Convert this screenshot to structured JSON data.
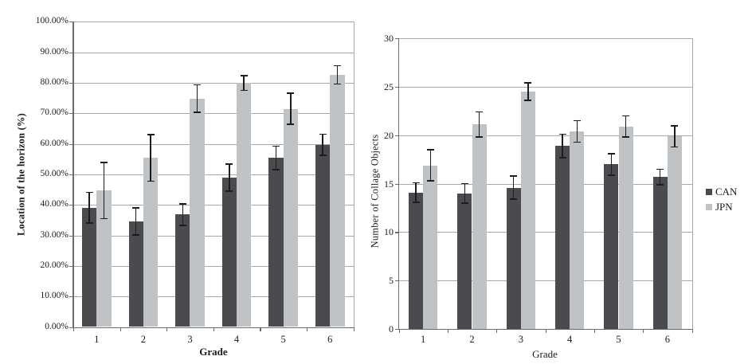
{
  "chart_data": [
    {
      "id": "horizon",
      "type": "bar",
      "title": "",
      "xlabel": "Grade",
      "ylabel": "Location of the horizon (%)",
      "categories": [
        "1",
        "2",
        "3",
        "4",
        "5",
        "6"
      ],
      "y_ticks": [
        "0.00%",
        "10.00%",
        "20.00%",
        "30.00%",
        "40.00%",
        "50.00%",
        "60.00%",
        "70.00%",
        "80.00%",
        "90.00%",
        "100.00%"
      ],
      "ylim": [
        0,
        100
      ],
      "grid": "horizontal",
      "error_bars": true,
      "series": [
        {
          "name": "CAN",
          "color": "#4b4b4f",
          "values": [
            39.1,
            34.6,
            36.8,
            48.9,
            55.4,
            59.7
          ],
          "errors": [
            5.0,
            4.4,
            3.5,
            4.4,
            3.8,
            3.4
          ]
        },
        {
          "name": "JPN",
          "color": "#c0c3c5",
          "values": [
            44.7,
            55.4,
            74.8,
            79.9,
            71.5,
            82.6
          ],
          "errors": [
            9.2,
            7.6,
            4.5,
            2.4,
            5.1,
            3.0
          ]
        }
      ]
    },
    {
      "id": "collage",
      "type": "bar",
      "title": "",
      "xlabel": "Grade",
      "ylabel": "Number of Collage Objects",
      "categories": [
        "1",
        "2",
        "3",
        "4",
        "5",
        "6"
      ],
      "y_ticks": [
        "0",
        "5",
        "10",
        "15",
        "20",
        "25",
        "30"
      ],
      "ylim": [
        0,
        30
      ],
      "grid": "horizontal",
      "error_bars": true,
      "legend_position": "right",
      "series": [
        {
          "name": "CAN",
          "color": "#4b4b4f",
          "values": [
            14.1,
            14.0,
            14.6,
            18.9,
            17.0,
            15.7
          ],
          "errors": [
            1.0,
            1.0,
            1.2,
            1.2,
            1.1,
            0.8
          ]
        },
        {
          "name": "JPN",
          "color": "#c0c3c5",
          "values": [
            16.9,
            21.1,
            24.5,
            20.4,
            20.9,
            19.9
          ],
          "errors": [
            1.6,
            1.3,
            0.9,
            1.1,
            1.1,
            1.1
          ]
        }
      ]
    }
  ],
  "legend": {
    "items": [
      {
        "label": "CAN",
        "color": "#4b4b4f"
      },
      {
        "label": "JPN",
        "color": "#c0c3c5"
      }
    ]
  },
  "colors": {
    "background": "#ffffff",
    "gridline": "#a8a8a8",
    "axis": "#6b6b6b",
    "text": "#1c1c1c",
    "error_bar": "#1c1c1c"
  }
}
